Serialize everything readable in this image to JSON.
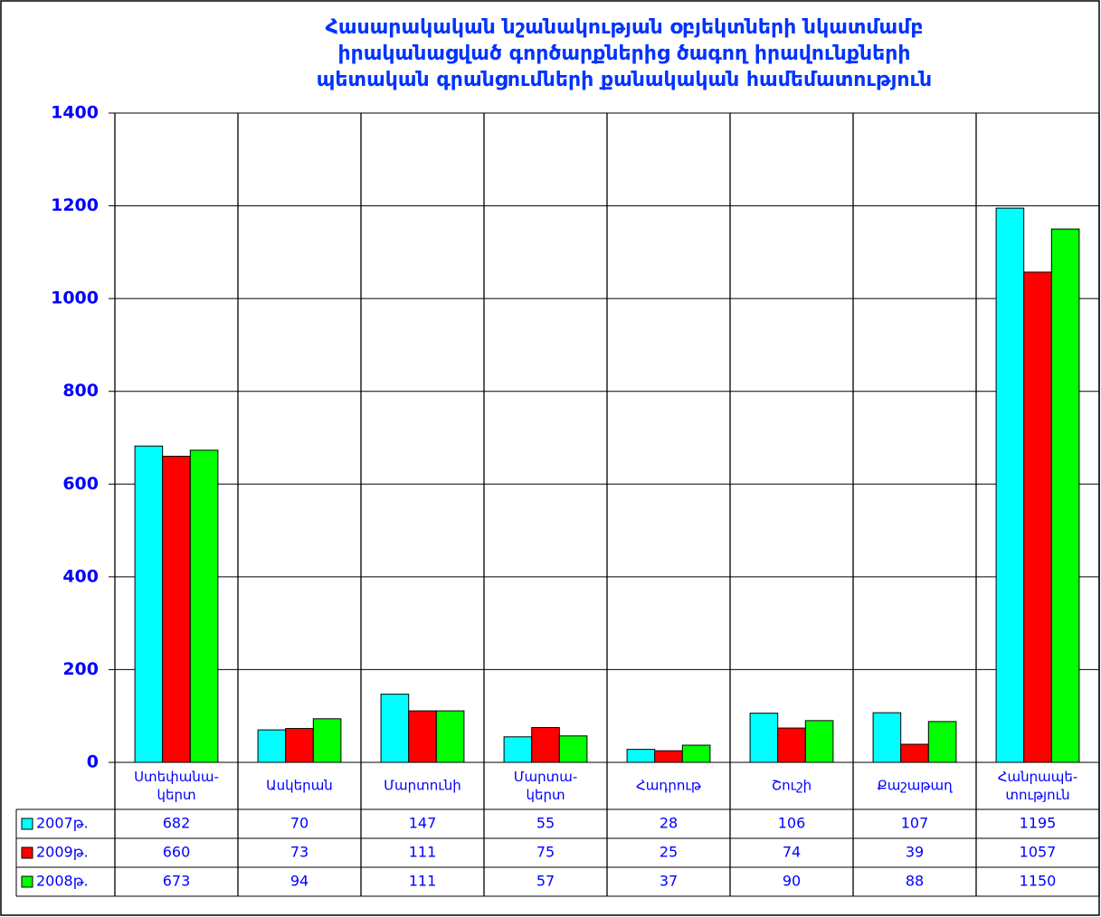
{
  "chart_data": {
    "type": "bar",
    "title": "Հասարակական նշանակության օբյեկտների նկատմամբ\nիրականացված գործարքներից ծագող իրավունքների\nպետական գրանցումների քանակական համեմատություն",
    "categories": [
      "Ստեփանա-\nկերտ",
      "Ասկերան",
      "Մարտունի",
      "Մարտա-\nկերտ",
      "Հադրութ",
      "Շուշի",
      "Քաշաթաղ",
      "Հանրապե-\nտություն"
    ],
    "series": [
      {
        "name": "2007թ.",
        "color": "#00ffff",
        "values": [
          682,
          70,
          147,
          55,
          28,
          106,
          107,
          1195
        ]
      },
      {
        "name": "2009թ.",
        "color": "#ff0000",
        "values": [
          660,
          73,
          111,
          75,
          25,
          74,
          39,
          1057
        ]
      },
      {
        "name": "2008թ.",
        "color": "#00ff00",
        "values": [
          673,
          94,
          111,
          57,
          37,
          90,
          88,
          1150
        ]
      }
    ],
    "ylim": [
      0,
      1400
    ],
    "yticks": [
      0,
      200,
      400,
      600,
      800,
      1000,
      1200,
      1400
    ],
    "grid": true
  }
}
